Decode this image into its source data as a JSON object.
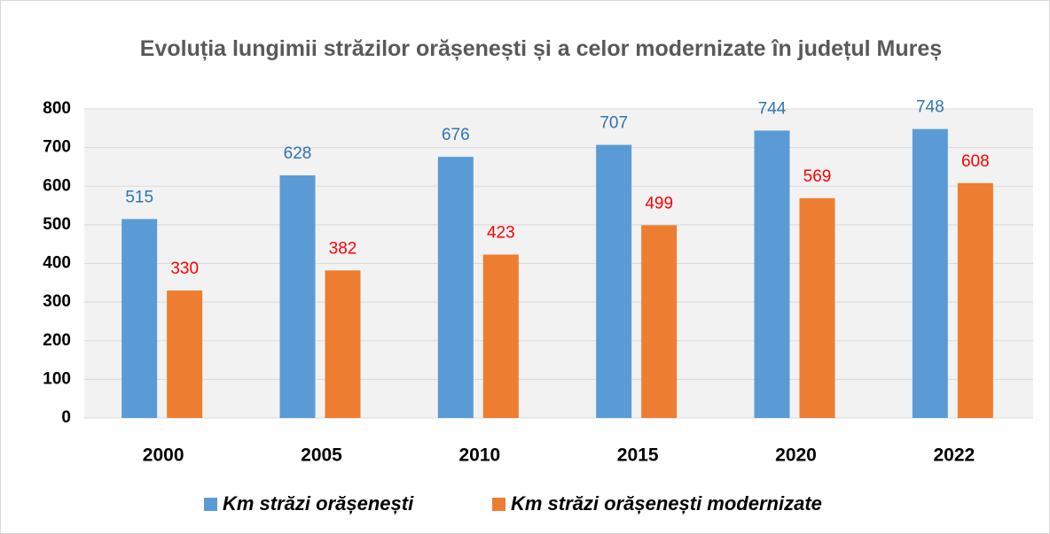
{
  "chart_data": {
    "type": "bar",
    "title": "Evoluția lungimii străzilor orășenești și a celor modernizate în județul Mureș",
    "categories": [
      "2000",
      "2005",
      "2010",
      "2015",
      "2020",
      "2022"
    ],
    "series": [
      {
        "name": "Km străzi orășenești",
        "color": "#5b9bd5",
        "label_color": "#2e75b6",
        "values": [
          515,
          628,
          676,
          707,
          744,
          748
        ]
      },
      {
        "name": "Km străzi orășenești modernizate",
        "color": "#ed7d31",
        "label_color": "#ff0000",
        "values": [
          330,
          382,
          423,
          499,
          569,
          608
        ]
      }
    ],
    "ylim": [
      0,
      800
    ],
    "yticks": [
      0,
      100,
      200,
      300,
      400,
      500,
      600,
      700,
      800
    ],
    "grid": true,
    "legend": "bottom"
  }
}
